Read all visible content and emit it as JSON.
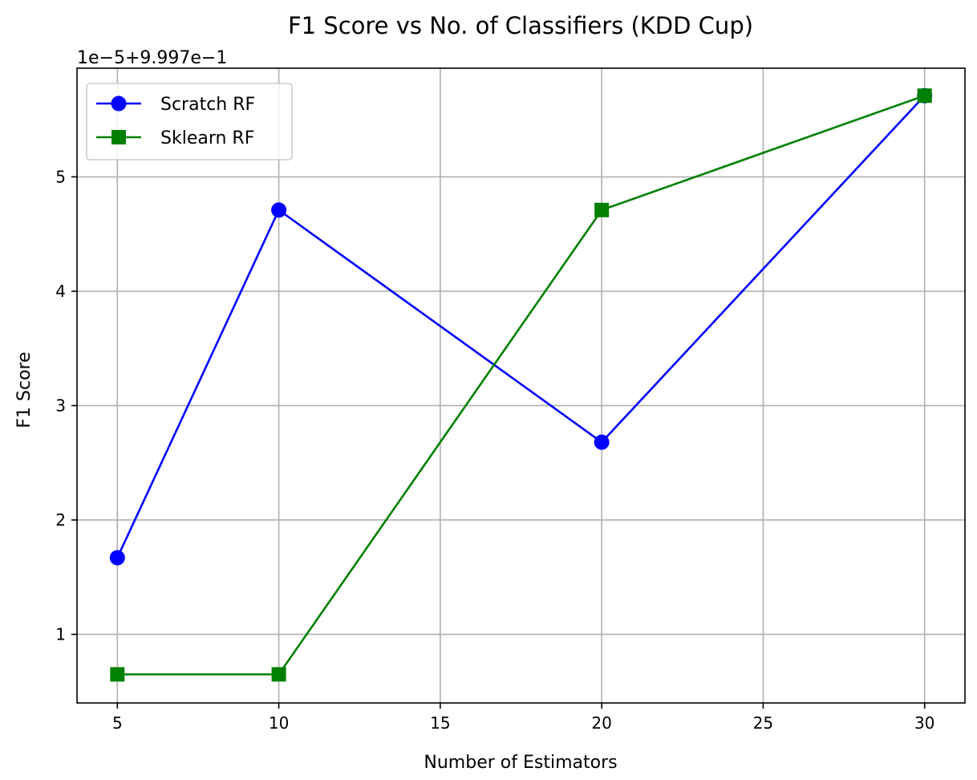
{
  "chart_data": {
    "type": "line",
    "title": "F1 Score vs No. of Classifiers (KDD Cup)",
    "xlabel": "Number of Estimators",
    "ylabel": "F1 Score",
    "y_offset_text": "1e−5+9.997e−1",
    "x": [
      5,
      10,
      20,
      30
    ],
    "xlim": [
      3.75,
      31.25
    ],
    "ylim": [
      0.4,
      5.95
    ],
    "xticks": [
      5,
      10,
      15,
      20,
      25,
      30
    ],
    "yticks": [
      1,
      2,
      3,
      4,
      5
    ],
    "grid": true,
    "legend_position": "upper-left",
    "series": [
      {
        "name": "Scratch RF",
        "values": [
          1.67,
          4.71,
          2.68,
          5.71
        ],
        "color": "#0000ff",
        "marker": "circle"
      },
      {
        "name": "Sklearn RF",
        "values": [
          0.65,
          0.65,
          4.71,
          5.71
        ],
        "color": "#008000",
        "marker": "square"
      }
    ]
  }
}
